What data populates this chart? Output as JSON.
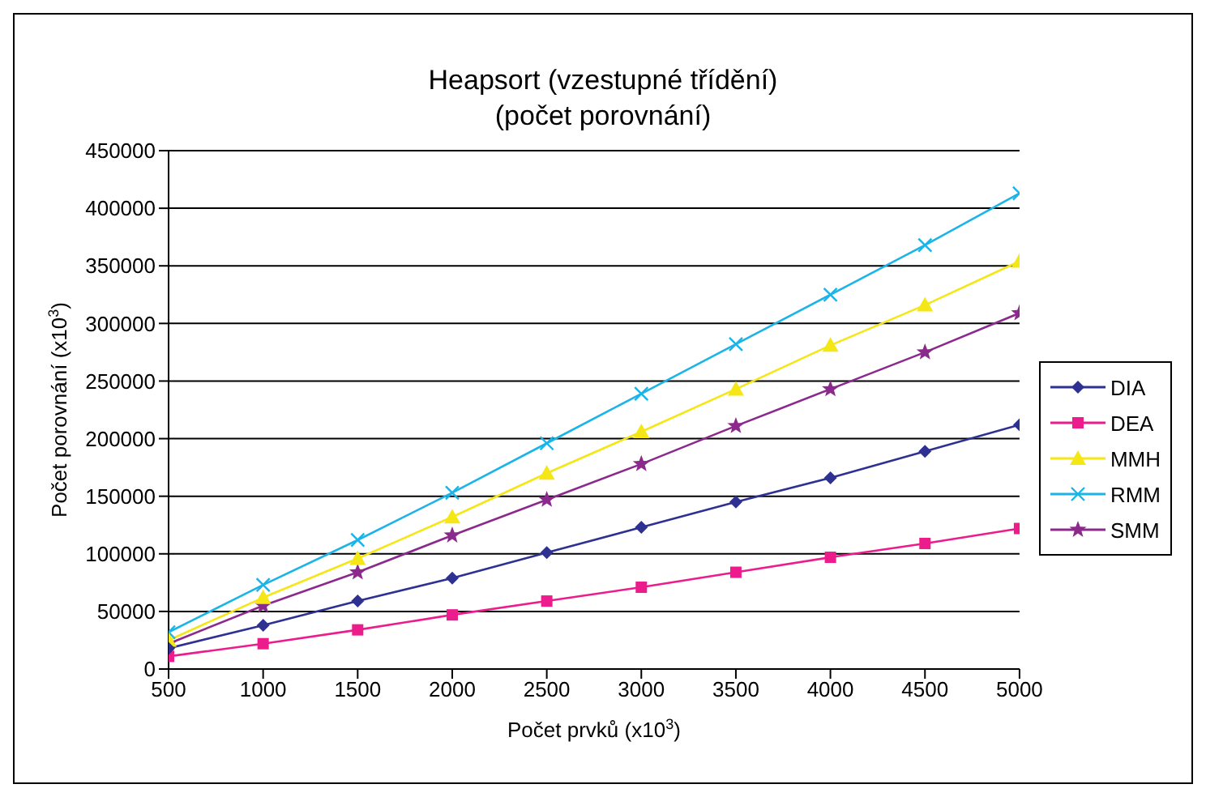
{
  "chart_data": {
    "type": "line",
    "title": "Heapsort (vzestupné třídění)",
    "subtitle": "(počet porovnání)",
    "xlabel": "Počet prvků (x10$^{3}$)",
    "ylabel": "Počet porovnání (x10$^{3}$)",
    "x": [
      500,
      1000,
      1500,
      2000,
      2500,
      3000,
      3500,
      4000,
      4500,
      5000
    ],
    "xlim": [
      500,
      5000
    ],
    "xticks": [
      500,
      1000,
      1500,
      2000,
      2500,
      3000,
      3500,
      4000,
      4500,
      5000
    ],
    "ylim": [
      0,
      450000
    ],
    "yticks": [
      0,
      50000,
      100000,
      150000,
      200000,
      250000,
      300000,
      350000,
      400000,
      450000
    ],
    "grid": "y",
    "legend": "right",
    "series": [
      {
        "name": "DIA",
        "color": "#2e3192",
        "marker": "diamond",
        "values": [
          18000,
          38000,
          59000,
          79000,
          101000,
          123000,
          145000,
          166000,
          189000,
          212000
        ]
      },
      {
        "name": "DEA",
        "color": "#ec1c8c",
        "marker": "square",
        "values": [
          11000,
          22000,
          34000,
          47000,
          59000,
          71000,
          84000,
          97000,
          109000,
          122000
        ]
      },
      {
        "name": "MMH",
        "color": "#f5e616",
        "marker": "triangle",
        "values": [
          25000,
          62000,
          96000,
          132000,
          170000,
          206000,
          243000,
          281000,
          316000,
          354000
        ]
      },
      {
        "name": "RMM",
        "color": "#1ab4e8",
        "marker": "cross",
        "values": [
          32000,
          73000,
          112000,
          153000,
          196000,
          239000,
          282000,
          325000,
          368000,
          413000
        ]
      },
      {
        "name": "SMM",
        "color": "#8b2a8c",
        "marker": "star",
        "values": [
          22000,
          55000,
          84000,
          116000,
          147000,
          178000,
          211000,
          243000,
          275000,
          309000
        ]
      }
    ]
  }
}
